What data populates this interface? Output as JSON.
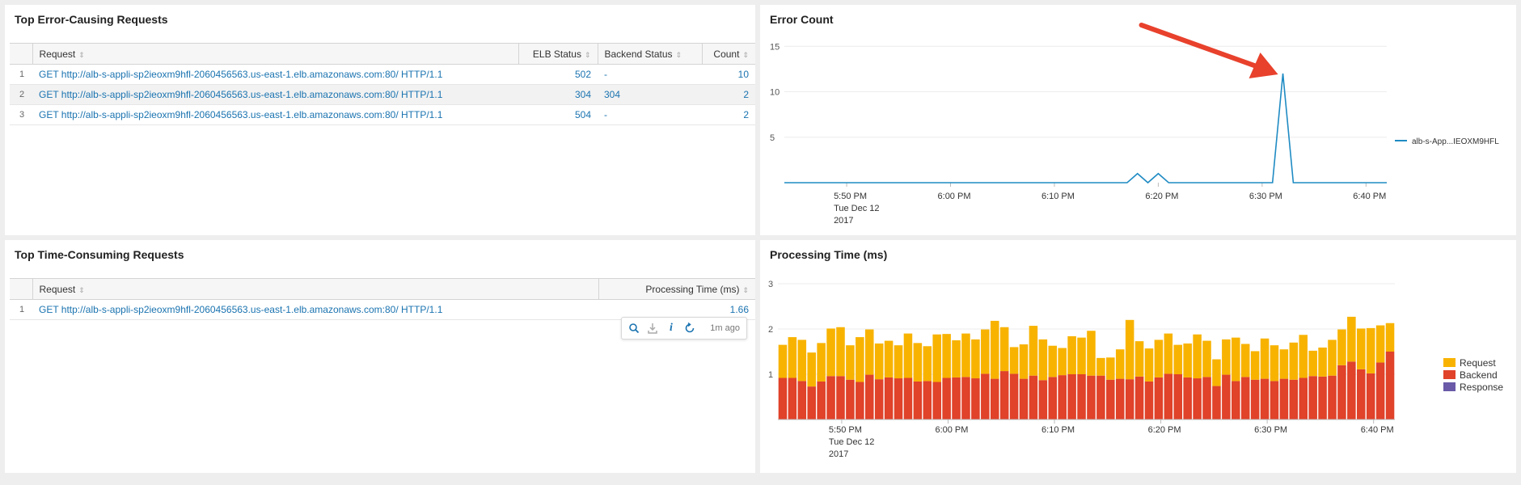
{
  "error_table": {
    "title": "Top Error-Causing Requests",
    "columns": [
      "Request",
      "ELB Status",
      "Backend Status",
      "Count"
    ],
    "rows": [
      {
        "idx": "1",
        "request": "GET http://alb-s-appli-sp2ieoxm9hfl-2060456563.us-east-1.elb.amazonaws.com:80/ HTTP/1.1",
        "elb": "502",
        "backend": "-",
        "count": "10"
      },
      {
        "idx": "2",
        "request": "GET http://alb-s-appli-sp2ieoxm9hfl-2060456563.us-east-1.elb.amazonaws.com:80/ HTTP/1.1",
        "elb": "304",
        "backend": "304",
        "count": "2"
      },
      {
        "idx": "3",
        "request": "GET http://alb-s-appli-sp2ieoxm9hfl-2060456563.us-east-1.elb.amazonaws.com:80/ HTTP/1.1",
        "elb": "504",
        "backend": "-",
        "count": "2"
      }
    ]
  },
  "time_table": {
    "title": "Top Time-Consuming Requests",
    "columns": [
      "Request",
      "Processing Time (ms)"
    ],
    "rows": [
      {
        "idx": "1",
        "request": "GET http://alb-s-appli-sp2ieoxm9hfl-2060456563.us-east-1.elb.amazonaws.com:80/ HTTP/1.1",
        "time": "1.66"
      }
    ]
  },
  "toolbar": {
    "icons": [
      "search-icon",
      "export-icon",
      "info-icon",
      "refresh-icon"
    ],
    "updated": "1m ago"
  },
  "colors": {
    "link": "#1a73b0",
    "line": "#1f8bc3",
    "request": "#f8b300",
    "backend": "#e0422a",
    "response": "#6a5aa8",
    "arrow": "#e8412c"
  },
  "chart_data": [
    {
      "type": "line",
      "title": "Error Count",
      "x_ticks": [
        "5:50 PM",
        "6:00 PM",
        "6:10 PM",
        "6:20 PM",
        "6:30 PM",
        "6:40 PM"
      ],
      "x_date_lines": [
        "Tue Dec 12",
        "2017"
      ],
      "y_ticks": [
        5,
        10,
        15
      ],
      "ylim": [
        0,
        16
      ],
      "series": [
        {
          "name": "alb-s-App...IEOXM9HFL",
          "x": [
            "5:44 PM",
            "6:17 PM",
            "6:18 PM",
            "6:19 PM",
            "6:20 PM",
            "6:21 PM",
            "6:31 PM",
            "6:32 PM",
            "6:33 PM",
            "6:42 PM"
          ],
          "y": [
            0,
            0,
            1,
            0,
            1,
            0,
            0,
            12,
            0,
            0
          ]
        }
      ],
      "annotation": "arrow pointing at peak"
    },
    {
      "type": "bar",
      "stacked": true,
      "title": "Processing Time (ms)",
      "x_ticks": [
        "5:50 PM",
        "6:00 PM",
        "6:10 PM",
        "6:20 PM",
        "6:30 PM",
        "6:40 PM"
      ],
      "x_date_lines": [
        "Tue Dec 12",
        "2017"
      ],
      "y_ticks": [
        1,
        2,
        3
      ],
      "ylim": [
        0,
        3
      ],
      "legend": "right",
      "series": [
        {
          "name": "Request",
          "values": [
            0.73,
            0.9,
            0.91,
            0.75,
            0.85,
            1.05,
            1.08,
            0.76,
            0.99,
            1.0,
            0.79,
            0.81,
            0.73,
            0.98,
            0.85,
            0.77,
            1.05,
            0.97,
            0.82,
            0.96,
            0.86,
            0.98,
            1.28,
            0.97,
            0.59,
            0.76,
            1.1,
            0.9,
            0.69,
            0.6,
            0.84,
            0.81,
            0.99,
            0.39,
            0.49,
            0.65,
            1.31,
            0.78,
            0.73,
            0.83,
            0.89,
            0.65,
            0.75,
            0.97,
            0.8,
            0.59,
            0.78,
            0.96,
            0.73,
            0.63,
            0.89,
            0.79,
            0.65,
            0.82,
            0.95,
            0.56,
            0.64,
            0.79,
            0.79,
            0.99,
            0.9,
            1.0,
            0.82,
            0.63
          ]
        },
        {
          "name": "Backend",
          "values": [
            0.92,
            0.92,
            0.85,
            0.73,
            0.84,
            0.96,
            0.96,
            0.88,
            0.83,
            0.99,
            0.89,
            0.93,
            0.91,
            0.92,
            0.84,
            0.85,
            0.83,
            0.92,
            0.93,
            0.94,
            0.91,
            1.01,
            0.9,
            1.07,
            1.01,
            0.9,
            0.97,
            0.87,
            0.94,
            0.98,
            1.0,
            1.0,
            0.97,
            0.97,
            0.88,
            0.9,
            0.89,
            0.95,
            0.84,
            0.93,
            1.01,
            1.0,
            0.93,
            0.91,
            0.94,
            0.74,
            0.99,
            0.85,
            0.94,
            0.88,
            0.9,
            0.85,
            0.9,
            0.88,
            0.92,
            0.96,
            0.95,
            0.97,
            1.2,
            1.28,
            1.11,
            1.02,
            1.26,
            1.5
          ]
        },
        {
          "name": "Response",
          "values": [
            0,
            0,
            0,
            0,
            0,
            0,
            0,
            0,
            0,
            0,
            0,
            0,
            0,
            0,
            0,
            0,
            0,
            0,
            0,
            0,
            0,
            0,
            0,
            0,
            0,
            0,
            0,
            0,
            0,
            0,
            0,
            0,
            0,
            0,
            0,
            0,
            0,
            0,
            0,
            0,
            0,
            0,
            0,
            0,
            0,
            0,
            0,
            0,
            0,
            0,
            0,
            0,
            0,
            0,
            0,
            0,
            0,
            0,
            0,
            0,
            0,
            0,
            0,
            0
          ]
        }
      ]
    }
  ]
}
